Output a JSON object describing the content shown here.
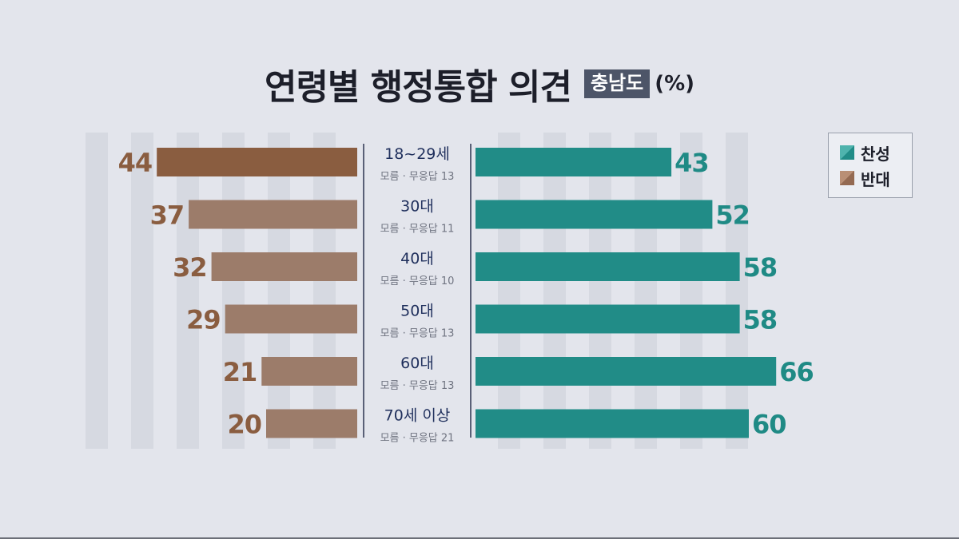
{
  "title": "연령별 행정통합 의견",
  "region": "충남도",
  "unit": "(%)",
  "legend": [
    {
      "name": "찬성",
      "color": "#218c87"
    },
    {
      "name": "반대",
      "color": "#946a52"
    }
  ],
  "colors": {
    "support": "#218c87",
    "oppose_highlight": "#8a5d40",
    "oppose": "#9c7c6a",
    "support_label": "#1f8a85",
    "oppose_label": "#8a5d40",
    "category_label": "#1f2f5c",
    "subnote": "#6f7380"
  },
  "chart_data": {
    "type": "bar",
    "categories": [
      "18~29세",
      "30대",
      "40대",
      "50대",
      "60대",
      "70세 이상"
    ],
    "subnotes": [
      "모름 · 무응답 13",
      "모름 · 무응답 11",
      "모름 · 무응답 10",
      "모름 · 무응답 13",
      "모름 · 무응답 13",
      "모름 · 무응답 21"
    ],
    "series": [
      {
        "name": "찬성",
        "values": [
          43,
          52,
          58,
          58,
          66,
          60
        ]
      },
      {
        "name": "반대",
        "values": [
          44,
          37,
          32,
          29,
          21,
          20
        ]
      }
    ],
    "legend_position": "top-right",
    "grid": true
  }
}
